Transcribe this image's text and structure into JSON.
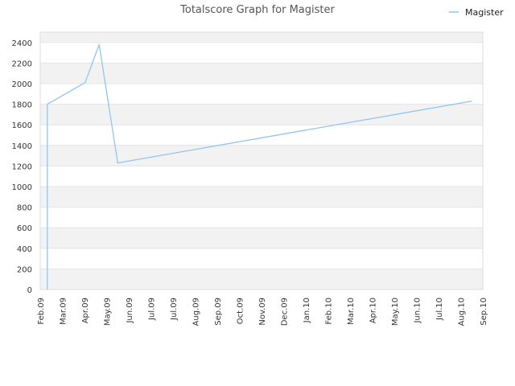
{
  "chart_data": {
    "type": "line",
    "title": "Totalscore Graph for Magister",
    "xlabel": "",
    "ylabel": "",
    "legend_placement": "top-right",
    "grid": true,
    "band_colors": [
      "#f2f2f2",
      "#ffffff"
    ],
    "x_ticks": [
      "Feb.09",
      "Mar.09",
      "Apr.09",
      "May.09",
      "Jun.09",
      "Jul.09",
      "Jul.09",
      "Aug.09",
      "Sep.09",
      "Oct.09",
      "Nov.09",
      "Dec.09",
      "Jan.10",
      "Feb.10",
      "Mar.10",
      "Apr.10",
      "May.10",
      "Jun.10",
      "Jul.10",
      "Aug.10",
      "Sep.10"
    ],
    "y_ticks": [
      0,
      200,
      400,
      600,
      800,
      1000,
      1200,
      1400,
      1600,
      1800,
      2000,
      2200,
      2400
    ],
    "ylim": [
      0,
      2500
    ],
    "x_range_index": [
      0,
      20
    ],
    "series": [
      {
        "name": "Magister",
        "color": "#92c5f0",
        "points": [
          {
            "x": 0.32,
            "y": 0
          },
          {
            "x": 0.32,
            "y": 1800
          },
          {
            "x": 2.03,
            "y": 2010
          },
          {
            "x": 2.66,
            "y": 2380
          },
          {
            "x": 3.5,
            "y": 1230
          },
          {
            "x": 19.5,
            "y": 1830
          }
        ]
      }
    ]
  }
}
